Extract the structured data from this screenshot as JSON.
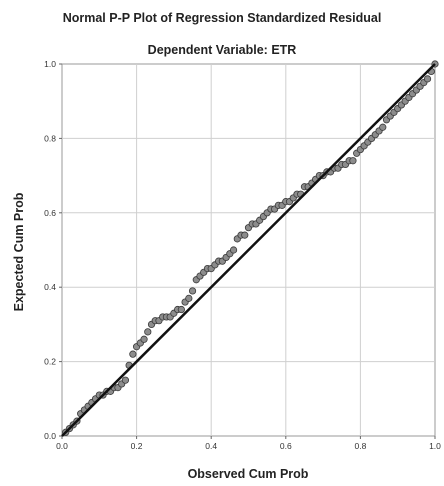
{
  "chart_data": {
    "type": "scatter",
    "title": "Normal P-P Plot of Regression Standardized Residual",
    "subtitle": "Dependent Variable: ETR",
    "xlabel": "Observed Cum Prob",
    "ylabel": "Expected Cum Prob",
    "xlim": [
      0,
      1
    ],
    "ylim": [
      0,
      1
    ],
    "xticks": [
      "0.0",
      "0.2",
      "0.4",
      "0.6",
      "0.8",
      "1.0"
    ],
    "yticks": [
      "0.0",
      "0.2",
      "0.4",
      "0.6",
      "0.8",
      "1.0"
    ],
    "grid": true,
    "reference_line": {
      "from": [
        0,
        0
      ],
      "to": [
        1,
        1
      ]
    },
    "points": [
      [
        0.01,
        0.01
      ],
      [
        0.02,
        0.02
      ],
      [
        0.03,
        0.03
      ],
      [
        0.04,
        0.04
      ],
      [
        0.05,
        0.06
      ],
      [
        0.06,
        0.07
      ],
      [
        0.07,
        0.08
      ],
      [
        0.08,
        0.09
      ],
      [
        0.09,
        0.1
      ],
      [
        0.1,
        0.11
      ],
      [
        0.11,
        0.11
      ],
      [
        0.12,
        0.12
      ],
      [
        0.13,
        0.12
      ],
      [
        0.14,
        0.13
      ],
      [
        0.15,
        0.13
      ],
      [
        0.16,
        0.14
      ],
      [
        0.17,
        0.15
      ],
      [
        0.18,
        0.19
      ],
      [
        0.19,
        0.22
      ],
      [
        0.2,
        0.24
      ],
      [
        0.21,
        0.25
      ],
      [
        0.22,
        0.26
      ],
      [
        0.23,
        0.28
      ],
      [
        0.24,
        0.3
      ],
      [
        0.25,
        0.31
      ],
      [
        0.26,
        0.31
      ],
      [
        0.27,
        0.32
      ],
      [
        0.28,
        0.32
      ],
      [
        0.29,
        0.32
      ],
      [
        0.3,
        0.33
      ],
      [
        0.31,
        0.34
      ],
      [
        0.32,
        0.34
      ],
      [
        0.33,
        0.36
      ],
      [
        0.34,
        0.37
      ],
      [
        0.35,
        0.39
      ],
      [
        0.36,
        0.42
      ],
      [
        0.37,
        0.43
      ],
      [
        0.38,
        0.44
      ],
      [
        0.39,
        0.45
      ],
      [
        0.4,
        0.45
      ],
      [
        0.41,
        0.46
      ],
      [
        0.42,
        0.47
      ],
      [
        0.43,
        0.47
      ],
      [
        0.44,
        0.48
      ],
      [
        0.45,
        0.49
      ],
      [
        0.46,
        0.5
      ],
      [
        0.47,
        0.53
      ],
      [
        0.48,
        0.54
      ],
      [
        0.49,
        0.54
      ],
      [
        0.5,
        0.56
      ],
      [
        0.51,
        0.57
      ],
      [
        0.52,
        0.57
      ],
      [
        0.53,
        0.58
      ],
      [
        0.54,
        0.59
      ],
      [
        0.55,
        0.6
      ],
      [
        0.56,
        0.61
      ],
      [
        0.57,
        0.61
      ],
      [
        0.58,
        0.62
      ],
      [
        0.59,
        0.62
      ],
      [
        0.6,
        0.63
      ],
      [
        0.61,
        0.63
      ],
      [
        0.62,
        0.64
      ],
      [
        0.63,
        0.65
      ],
      [
        0.64,
        0.65
      ],
      [
        0.65,
        0.67
      ],
      [
        0.66,
        0.67
      ],
      [
        0.67,
        0.68
      ],
      [
        0.68,
        0.69
      ],
      [
        0.69,
        0.7
      ],
      [
        0.7,
        0.7
      ],
      [
        0.71,
        0.71
      ],
      [
        0.72,
        0.71
      ],
      [
        0.73,
        0.72
      ],
      [
        0.74,
        0.72
      ],
      [
        0.75,
        0.73
      ],
      [
        0.76,
        0.73
      ],
      [
        0.77,
        0.74
      ],
      [
        0.78,
        0.74
      ],
      [
        0.79,
        0.76
      ],
      [
        0.8,
        0.77
      ],
      [
        0.81,
        0.78
      ],
      [
        0.82,
        0.79
      ],
      [
        0.83,
        0.8
      ],
      [
        0.84,
        0.81
      ],
      [
        0.85,
        0.82
      ],
      [
        0.86,
        0.83
      ],
      [
        0.87,
        0.85
      ],
      [
        0.88,
        0.86
      ],
      [
        0.89,
        0.87
      ],
      [
        0.9,
        0.88
      ],
      [
        0.91,
        0.89
      ],
      [
        0.92,
        0.9
      ],
      [
        0.93,
        0.91
      ],
      [
        0.94,
        0.92
      ],
      [
        0.95,
        0.93
      ],
      [
        0.96,
        0.94
      ],
      [
        0.97,
        0.95
      ],
      [
        0.98,
        0.96
      ],
      [
        0.99,
        0.98
      ],
      [
        1.0,
        1.0
      ]
    ]
  }
}
